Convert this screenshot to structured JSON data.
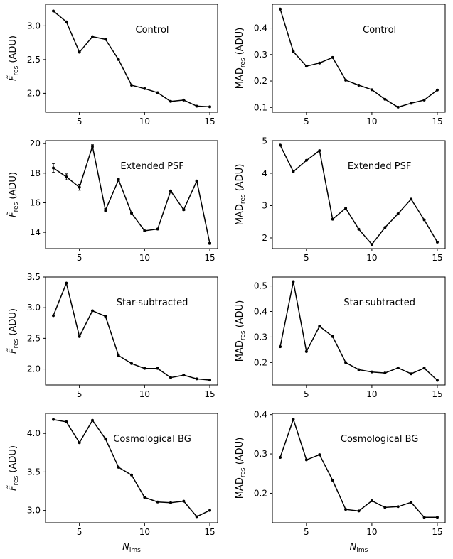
{
  "chart_data": [
    {
      "type": "line",
      "panel": "left-1",
      "annotation": "Control",
      "ylabel": {
        "main": "F̃",
        "sub": "res",
        "unit": "(ADU)"
      },
      "xlabel": null,
      "x": [
        3,
        4,
        5,
        6,
        7,
        8,
        9,
        10,
        11,
        12,
        13,
        14,
        15
      ],
      "y": [
        3.22,
        3.06,
        2.61,
        2.84,
        2.8,
        2.5,
        2.12,
        2.07,
        2.01,
        1.88,
        1.9,
        1.81,
        1.8
      ],
      "xlim": [
        2.4,
        15.6
      ],
      "ylim": [
        1.72,
        3.32
      ],
      "xticks": [
        5,
        10,
        15
      ],
      "yticks": [
        2.0,
        2.5,
        3.0
      ],
      "ytick_labels": [
        "2.0",
        "2.5",
        "3.0"
      ]
    },
    {
      "type": "line",
      "panel": "right-1",
      "annotation": "Control",
      "ylabel": {
        "main": "MAD",
        "sub": "res",
        "unit": "(ADU)"
      },
      "xlabel": null,
      "x": [
        3,
        4,
        5,
        6,
        7,
        8,
        9,
        10,
        11,
        12,
        13,
        14,
        15
      ],
      "y": [
        0.472,
        0.311,
        0.256,
        0.268,
        0.289,
        0.203,
        0.184,
        0.167,
        0.131,
        0.101,
        0.116,
        0.128,
        0.166
      ],
      "xlim": [
        2.4,
        15.6
      ],
      "ylim": [
        0.082,
        0.49
      ],
      "xticks": [
        5,
        10,
        15
      ],
      "yticks": [
        0.1,
        0.2,
        0.3,
        0.4
      ],
      "ytick_labels": [
        "0.1",
        "0.2",
        "0.3",
        "0.4"
      ]
    },
    {
      "type": "line",
      "panel": "left-2",
      "annotation": "Extended PSF",
      "ylabel": {
        "main": "F̃",
        "sub": "res",
        "unit": "(ADU)"
      },
      "xlabel": null,
      "x": [
        3,
        4,
        5,
        6,
        7,
        8,
        9,
        10,
        11,
        12,
        13,
        14,
        15
      ],
      "y": [
        18.35,
        17.75,
        17.05,
        19.82,
        15.5,
        17.55,
        15.3,
        14.1,
        14.22,
        16.8,
        15.53,
        17.47,
        13.25
      ],
      "err": [
        0.3,
        0.2,
        0.2,
        0.1,
        0.1,
        0.1,
        0.05,
        0.05,
        0.05,
        0.05,
        0.05,
        0.05,
        0.05
      ],
      "xlim": [
        2.4,
        15.6
      ],
      "ylim": [
        12.9,
        20.2
      ],
      "xticks": [
        5,
        10,
        15
      ],
      "yticks": [
        14,
        16,
        18,
        20
      ],
      "ytick_labels": [
        "14",
        "16",
        "18",
        "20"
      ]
    },
    {
      "type": "line",
      "panel": "right-2",
      "annotation": "Extended PSF",
      "ylabel": {
        "main": "MAD",
        "sub": "res",
        "unit": "(ADU)"
      },
      "xlabel": null,
      "x": [
        3,
        4,
        5,
        6,
        7,
        8,
        9,
        10,
        11,
        12,
        13,
        14,
        15
      ],
      "y": [
        4.87,
        4.05,
        4.4,
        4.7,
        2.58,
        2.92,
        2.27,
        1.8,
        2.32,
        2.75,
        3.2,
        2.56,
        1.87
      ],
      "xlim": [
        2.4,
        15.6
      ],
      "ylim": [
        1.67,
        5.01
      ],
      "xticks": [
        5,
        10,
        15
      ],
      "yticks": [
        2,
        3,
        4,
        5
      ],
      "ytick_labels": [
        "2",
        "3",
        "4",
        "5"
      ]
    },
    {
      "type": "line",
      "panel": "left-3",
      "annotation": "Star-subtracted",
      "ylabel": {
        "main": "F̃",
        "sub": "res",
        "unit": "(ADU)"
      },
      "xlabel": null,
      "x": [
        3,
        4,
        5,
        6,
        7,
        8,
        9,
        10,
        11,
        12,
        13,
        14,
        15
      ],
      "y": [
        2.87,
        3.4,
        2.53,
        2.95,
        2.86,
        2.22,
        2.09,
        2.01,
        2.01,
        1.86,
        1.9,
        1.84,
        1.82
      ],
      "xlim": [
        2.4,
        15.6
      ],
      "ylim": [
        1.74,
        3.5
      ],
      "xticks": [
        5,
        10,
        15
      ],
      "yticks": [
        2.0,
        2.5,
        3.0,
        3.5
      ],
      "ytick_labels": [
        "2.0",
        "2.5",
        "3.0",
        "3.5"
      ]
    },
    {
      "type": "line",
      "panel": "right-3",
      "annotation": "Star-subtracted",
      "ylabel": {
        "main": "MAD",
        "sub": "res",
        "unit": "(ADU)"
      },
      "xlabel": null,
      "x": [
        3,
        4,
        5,
        6,
        7,
        8,
        9,
        10,
        11,
        12,
        13,
        14,
        15
      ],
      "y": [
        0.262,
        0.517,
        0.243,
        0.342,
        0.302,
        0.2,
        0.172,
        0.163,
        0.159,
        0.179,
        0.156,
        0.178,
        0.13
      ],
      "xlim": [
        2.4,
        15.6
      ],
      "ylim": [
        0.112,
        0.535
      ],
      "xticks": [
        5,
        10,
        15
      ],
      "yticks": [
        0.2,
        0.3,
        0.4,
        0.5
      ],
      "ytick_labels": [
        "0.2",
        "0.3",
        "0.4",
        "0.5"
      ]
    },
    {
      "type": "line",
      "panel": "left-4",
      "annotation": "Cosmological BG",
      "ylabel": {
        "main": "F̃",
        "sub": "res",
        "unit": "(ADU)"
      },
      "xlabel": {
        "main": "N",
        "sub": "ims"
      },
      "x": [
        3,
        4,
        5,
        6,
        7,
        8,
        9,
        10,
        11,
        12,
        13,
        14,
        15
      ],
      "y": [
        4.18,
        4.15,
        3.88,
        4.17,
        3.93,
        3.56,
        3.46,
        3.17,
        3.11,
        3.1,
        3.12,
        2.92,
        3.0
      ],
      "xlim": [
        2.4,
        15.6
      ],
      "ylim": [
        2.84,
        4.26
      ],
      "xticks": [
        5,
        10,
        15
      ],
      "yticks": [
        3.0,
        3.5,
        4.0
      ],
      "ytick_labels": [
        "3.0",
        "3.5",
        "4.0"
      ]
    },
    {
      "type": "line",
      "panel": "right-4",
      "annotation": "Cosmological BG",
      "ylabel": {
        "main": "MAD",
        "sub": "res",
        "unit": "(ADU)"
      },
      "xlabel": {
        "main": "N",
        "sub": "ims"
      },
      "x": [
        3,
        4,
        5,
        6,
        7,
        8,
        9,
        10,
        11,
        12,
        13,
        14,
        15
      ],
      "y": [
        0.291,
        0.388,
        0.285,
        0.298,
        0.233,
        0.159,
        0.155,
        0.181,
        0.164,
        0.166,
        0.177,
        0.139,
        0.139
      ],
      "xlim": [
        2.4,
        15.6
      ],
      "ylim": [
        0.125,
        0.403
      ],
      "xticks": [
        5,
        10,
        15
      ],
      "yticks": [
        0.2,
        0.3,
        0.4
      ],
      "ytick_labels": [
        "0.2",
        "0.3",
        "0.4"
      ]
    }
  ]
}
